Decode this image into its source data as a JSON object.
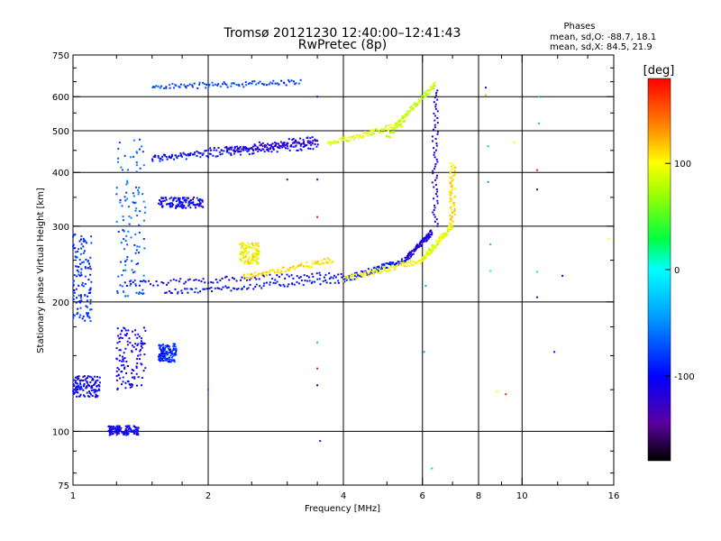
{
  "chart_data": {
    "type": "scatter",
    "title_line1": "Tromsø 20121230 12:40:00–12:41:43",
    "title_line2": "RwPretec (8p)",
    "stats": {
      "heading": "Phases",
      "line_o": "mean, sd,O: -88.7, 18.1",
      "line_x": "mean, sd,X: 84.5, 21.9"
    },
    "xlabel": "Frequency [MHz]",
    "ylabel": "Stationary phase Virtual Height [km]",
    "x_scale": "log",
    "y_scale": "log",
    "xlim": [
      1,
      16
    ],
    "ylim": [
      75,
      750
    ],
    "x_ticks": [
      1,
      2,
      4,
      6,
      8,
      10,
      16
    ],
    "x_tick_labels": [
      "1",
      "2",
      "4",
      "6",
      "8",
      "10",
      "16"
    ],
    "x_minor_ticks": [
      1.25,
      1.5,
      1.75,
      2.5,
      3,
      3.5,
      5,
      7,
      9,
      12,
      14
    ],
    "x_grid": [
      2,
      4,
      6,
      8,
      10
    ],
    "y_ticks": [
      75,
      100,
      200,
      300,
      400,
      500,
      600,
      750
    ],
    "y_tick_labels": [
      "75",
      "100",
      "200",
      "300",
      "400",
      "500",
      "600",
      "750"
    ],
    "y_minor_ticks": [
      80,
      90,
      125,
      150,
      175,
      250,
      350,
      450,
      550,
      650,
      700
    ],
    "y_grid": [
      100,
      200,
      300,
      400,
      500,
      600
    ],
    "grid": true,
    "colorbar": {
      "label": "[deg]",
      "min": -180,
      "max": 180,
      "ticks": [
        100,
        0,
        -100
      ],
      "tick_labels": [
        "100",
        "0",
        "-100"
      ]
    },
    "traces": [
      {
        "x0": 1.5,
        "x1": 3.5,
        "y0": 432,
        "y1": 480,
        "phase": -110
      },
      {
        "x0": 2.2,
        "x1": 3.5,
        "y0": 450,
        "y1": 470,
        "phase": -130
      },
      {
        "x0": 1.5,
        "x1": 3.5,
        "y0": 430,
        "y1": 460,
        "phase": -100
      },
      {
        "x0": 1.5,
        "x1": 3.2,
        "y0": 632,
        "y1": 648,
        "phase": -80
      },
      {
        "x0": 3.7,
        "x1": 5.5,
        "y0": 465,
        "y1": 520,
        "phase": 90
      },
      {
        "x0": 5.0,
        "x1": 6.4,
        "y0": 480,
        "y1": 640,
        "phase": 80
      },
      {
        "x0": 1.3,
        "x1": 4.0,
        "y0": 220,
        "y1": 232,
        "phase": -110
      },
      {
        "x0": 1.6,
        "x1": 4.0,
        "y0": 210,
        "y1": 225,
        "phase": -100
      },
      {
        "x0": 4.0,
        "x1": 5.5,
        "y0": 225,
        "y1": 250,
        "phase": -100
      },
      {
        "x0": 5.5,
        "x1": 6.3,
        "y0": 250,
        "y1": 290,
        "phase": -120
      },
      {
        "x0": 4.0,
        "x1": 6.0,
        "y0": 225,
        "y1": 250,
        "phase": 100
      },
      {
        "x0": 6.0,
        "x1": 7.0,
        "y0": 250,
        "y1": 300,
        "phase": 90
      },
      {
        "x0": 2.4,
        "x1": 3.8,
        "y0": 228,
        "y1": 250,
        "phase": 110
      }
    ],
    "vertical_traces": [
      {
        "x": 6.4,
        "y0": 300,
        "y1": 620,
        "phase": -120
      },
      {
        "x": 7.0,
        "y0": 300,
        "y1": 420,
        "phase": 110
      }
    ],
    "clusters": [
      {
        "x0": 1.25,
        "x1": 1.45,
        "y0": 205,
        "y1": 480,
        "phase": -70
      },
      {
        "x0": 1.25,
        "x1": 1.45,
        "y0": 125,
        "y1": 175,
        "phase": -110
      },
      {
        "x0": 1.0,
        "x1": 1.1,
        "y0": 180,
        "y1": 290,
        "phase": -90
      },
      {
        "x0": 1.0,
        "x1": 1.15,
        "y0": 120,
        "y1": 135,
        "phase": -110
      },
      {
        "x0": 1.2,
        "x1": 1.4,
        "y0": 98,
        "y1": 103,
        "phase": -110
      },
      {
        "x0": 1.55,
        "x1": 1.95,
        "y0": 330,
        "y1": 350,
        "phase": -110
      },
      {
        "x0": 2.35,
        "x1": 2.6,
        "y0": 245,
        "y1": 275,
        "phase": 100
      },
      {
        "x0": 1.55,
        "x1": 1.7,
        "y0": 145,
        "y1": 160,
        "phase": -90
      }
    ],
    "isolated_points": [
      {
        "x": 3.5,
        "y": 600,
        "phase": -110
      },
      {
        "x": 3.5,
        "y": 315,
        "phase": 175
      },
      {
        "x": 3.5,
        "y": 161,
        "phase": -30
      },
      {
        "x": 3.5,
        "y": 140,
        "phase": 175
      },
      {
        "x": 3.5,
        "y": 128,
        "phase": -110
      },
      {
        "x": 3.55,
        "y": 95,
        "phase": -90
      },
      {
        "x": 6.1,
        "y": 218,
        "phase": -40
      },
      {
        "x": 6.3,
        "y": 82,
        "phase": -30
      },
      {
        "x": 6.05,
        "y": 153,
        "phase": -40
      },
      {
        "x": 8.3,
        "y": 630,
        "phase": -130
      },
      {
        "x": 8.3,
        "y": 605,
        "phase": 60
      },
      {
        "x": 8.4,
        "y": 460,
        "phase": -30
      },
      {
        "x": 8.4,
        "y": 380,
        "phase": -50
      },
      {
        "x": 8.5,
        "y": 272,
        "phase": -30
      },
      {
        "x": 8.5,
        "y": 236,
        "phase": 10
      },
      {
        "x": 8.8,
        "y": 124,
        "phase": 100
      },
      {
        "x": 9.2,
        "y": 122,
        "phase": 170
      },
      {
        "x": 9.6,
        "y": 470,
        "phase": 100
      },
      {
        "x": 10.9,
        "y": 600,
        "phase": -30
      },
      {
        "x": 10.9,
        "y": 520,
        "phase": -30
      },
      {
        "x": 10.8,
        "y": 405,
        "phase": 170
      },
      {
        "x": 10.8,
        "y": 365,
        "phase": -130
      },
      {
        "x": 10.8,
        "y": 235,
        "phase": 10
      },
      {
        "x": 10.8,
        "y": 205,
        "phase": -130
      },
      {
        "x": 12.3,
        "y": 230,
        "phase": -110
      },
      {
        "x": 11.8,
        "y": 153,
        "phase": -110
      },
      {
        "x": 15.6,
        "y": 280,
        "phase": 100
      },
      {
        "x": 2.0,
        "y": 125,
        "phase": -60
      },
      {
        "x": 3.0,
        "y": 385,
        "phase": -130
      },
      {
        "x": 3.5,
        "y": 385,
        "phase": -100
      }
    ]
  }
}
